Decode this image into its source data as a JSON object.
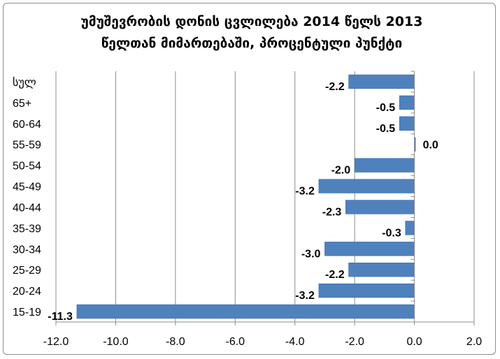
{
  "chart_data": {
    "type": "bar",
    "orientation": "horizontal",
    "title": "უმუშევრობის დონის ცვლილება 2014 წელს 2013 წელთან მიმართებაში, პროცენტული პუნქტი",
    "title_lines": [
      "უმუშევრობის დონის ცვლილება 2014 წელს 2013",
      "წელთან მიმართებაში, პროცენტული პუნქტი"
    ],
    "categories": [
      "სულ",
      "65+",
      "60-64",
      "55-59",
      "50-54",
      "45-49",
      "40-44",
      "35-39",
      "30-34",
      "25-29",
      "20-24",
      "15-19"
    ],
    "values": [
      -2.2,
      -0.5,
      -0.5,
      0.0,
      -2.0,
      -3.2,
      -2.3,
      -0.3,
      -3.0,
      -2.2,
      -3.2,
      -11.3
    ],
    "data_labels": [
      "-2.2",
      "-0.5",
      "-0.5",
      "0.0",
      "-2.0",
      "-3.2",
      "-2.3",
      "-0.3",
      "-3.0",
      "-2.2",
      "-3.2",
      "-11.3"
    ],
    "xlim": [
      -12.0,
      2.0
    ],
    "x_ticks": [
      -12.0,
      -10.0,
      -8.0,
      -6.0,
      -4.0,
      -2.0,
      0.0,
      2.0
    ],
    "x_tick_labels": [
      "-12.0",
      "-10.0",
      "-8.0",
      "-6.0",
      "-4.0",
      "-2.0",
      "0.0",
      "2.0"
    ],
    "xlabel": "",
    "ylabel": "",
    "grid": "vertical",
    "legend": "none",
    "colors": {
      "bar": "#4f81bd",
      "bar_edge": "#3a6aa8",
      "grid": "#8c8c8c",
      "axis": "#8c8c8c"
    }
  }
}
